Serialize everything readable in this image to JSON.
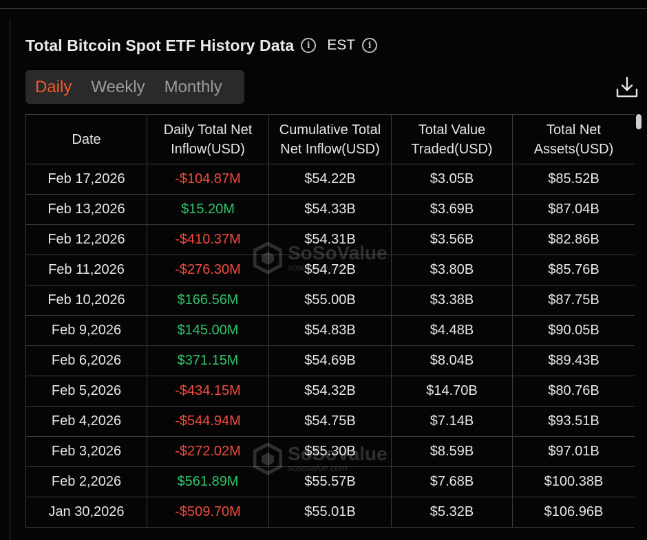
{
  "header": {
    "title": "Total Bitcoin Spot ETF History Data",
    "timezone": "EST"
  },
  "tabs": [
    {
      "label": "Daily",
      "active": true
    },
    {
      "label": "Weekly",
      "active": false
    },
    {
      "label": "Monthly",
      "active": false
    }
  ],
  "icons": {
    "info": "info-icon",
    "download": "download-icon"
  },
  "colors": {
    "accent": "#f05a2b",
    "negative": "#ef4a3f",
    "positive": "#2ec46b"
  },
  "table": {
    "columns": [
      "Date",
      "Daily Total Net Inflow(USD)",
      "Cumulative Total Net Inflow(USD)",
      "Total Value Traded(USD)",
      "Total Net Assets(USD)"
    ],
    "rows": [
      {
        "date": "Feb 17,2026",
        "daily": "-$104.87M",
        "sign": "neg",
        "cumulative": "$54.22B",
        "traded": "$3.05B",
        "assets": "$85.52B"
      },
      {
        "date": "Feb 13,2026",
        "daily": "$15.20M",
        "sign": "pos",
        "cumulative": "$54.33B",
        "traded": "$3.69B",
        "assets": "$87.04B"
      },
      {
        "date": "Feb 12,2026",
        "daily": "-$410.37M",
        "sign": "neg",
        "cumulative": "$54.31B",
        "traded": "$3.56B",
        "assets": "$82.86B"
      },
      {
        "date": "Feb 11,2026",
        "daily": "-$276.30M",
        "sign": "neg",
        "cumulative": "$54.72B",
        "traded": "$3.80B",
        "assets": "$85.76B"
      },
      {
        "date": "Feb 10,2026",
        "daily": "$166.56M",
        "sign": "pos",
        "cumulative": "$55.00B",
        "traded": "$3.38B",
        "assets": "$87.75B"
      },
      {
        "date": "Feb 9,2026",
        "daily": "$145.00M",
        "sign": "pos",
        "cumulative": "$54.83B",
        "traded": "$4.48B",
        "assets": "$90.05B"
      },
      {
        "date": "Feb 6,2026",
        "daily": "$371.15M",
        "sign": "pos",
        "cumulative": "$54.69B",
        "traded": "$8.04B",
        "assets": "$89.43B"
      },
      {
        "date": "Feb 5,2026",
        "daily": "-$434.15M",
        "sign": "neg",
        "cumulative": "$54.32B",
        "traded": "$14.70B",
        "assets": "$80.76B"
      },
      {
        "date": "Feb 4,2026",
        "daily": "-$544.94M",
        "sign": "neg",
        "cumulative": "$54.75B",
        "traded": "$7.14B",
        "assets": "$93.51B"
      },
      {
        "date": "Feb 3,2026",
        "daily": "-$272.02M",
        "sign": "neg",
        "cumulative": "$55.30B",
        "traded": "$8.59B",
        "assets": "$97.01B"
      },
      {
        "date": "Feb 2,2026",
        "daily": "$561.89M",
        "sign": "pos",
        "cumulative": "$55.57B",
        "traded": "$7.68B",
        "assets": "$100.38B"
      },
      {
        "date": "Jan 30,2026",
        "daily": "-$509.70M",
        "sign": "neg",
        "cumulative": "$55.01B",
        "traded": "$5.32B",
        "assets": "$106.96B"
      }
    ]
  },
  "watermark": {
    "brand": "SoSoValue",
    "url": "sosovalue.com"
  }
}
